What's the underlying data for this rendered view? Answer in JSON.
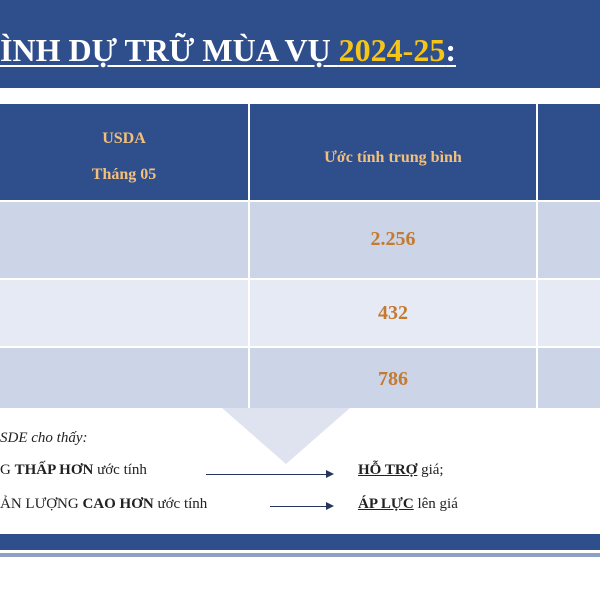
{
  "title": {
    "prefix": "ÌNH DỰ TRỮ MÙA VỤ ",
    "season": "2024-25",
    "suffix": ":"
  },
  "table": {
    "headers": [
      {
        "line1": "USDA",
        "line2": "Tháng 05"
      },
      {
        "line1": "Ước tính trung bình"
      },
      {
        "line1": ""
      }
    ],
    "rows": [
      {
        "usda": "",
        "estimate": "2.256"
      },
      {
        "usda": "",
        "estimate": "432"
      },
      {
        "usda": "",
        "estimate": "786"
      }
    ]
  },
  "notes": {
    "intro": "SDE cho thấy:",
    "line1": {
      "lead": "G ",
      "bold": "THẤP HƠN",
      "rest": " ước tính",
      "target_kw": "HỖ TRỢ",
      "target_rest": " giá;"
    },
    "line2": {
      "lead": "ẢN LƯỢNG ",
      "bold": "CAO HƠN",
      "rest": " ước tính",
      "target_kw": "ÁP LỰC",
      "target_rest": " lên giá"
    }
  },
  "colors": {
    "header_bg": "#2f4e8c",
    "header_text": "#f3c07a",
    "title_season": "#f5c518",
    "value_text": "#c47a30",
    "row_dark": "#ccd4e8",
    "row_light": "#e6eaf4"
  }
}
